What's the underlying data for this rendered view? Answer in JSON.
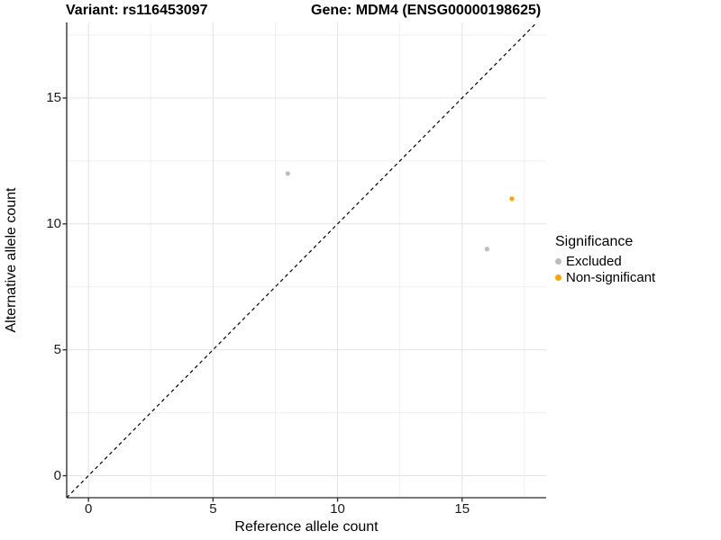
{
  "titles": {
    "variant": "Variant: rs116453097",
    "gene": "Gene: MDM4 (ENSG00000198625)"
  },
  "chart_data": {
    "type": "scatter",
    "title_left": "Variant: rs116453097",
    "title_right": "Gene: MDM4 (ENSG00000198625)",
    "xlabel": "Reference allele count",
    "ylabel": "Alternative allele count",
    "xlim": [
      -0.875,
      18.375
    ],
    "ylim": [
      -0.875,
      18.0
    ],
    "x_ticks": [
      0,
      5,
      10,
      15
    ],
    "y_ticks": [
      0,
      5,
      10,
      15
    ],
    "x_minor_ticks": [
      2.5,
      7.5,
      12.5,
      17.5
    ],
    "y_minor_ticks": [
      2.5,
      7.5,
      12.5,
      17.5
    ],
    "grid": true,
    "reference_line": {
      "type": "identity",
      "style": "dashed",
      "color": "#000000"
    },
    "series": [
      {
        "name": "Excluded",
        "color": "#BDBDBD",
        "points": [
          {
            "x": 8,
            "y": 12
          },
          {
            "x": 16,
            "y": 9
          }
        ]
      },
      {
        "name": "Non-significant",
        "color": "#FFA500",
        "points": [
          {
            "x": 17,
            "y": 11
          }
        ]
      }
    ],
    "legend": {
      "title": "Significance",
      "position": "right"
    }
  },
  "style_colors": {
    "grid_major": "#e3e3e3",
    "grid_minor": "#f0f0f0",
    "axis_line": "#4d4d4d",
    "tick_mark": "#333333"
  }
}
